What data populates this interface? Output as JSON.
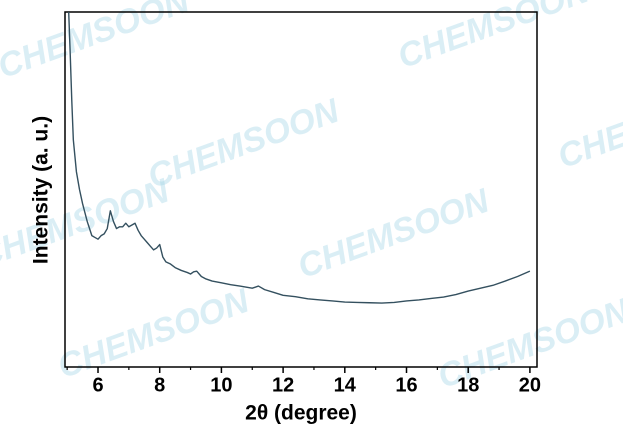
{
  "watermark": "CHEMSOON",
  "chart_data": {
    "type": "line",
    "x_label": "2θ (degree)",
    "y_label": "Intensity (a. u.)",
    "xlim": [
      4.93,
      20.23
    ],
    "ylim": [
      0,
      100
    ],
    "xticks": [
      6,
      8,
      10,
      12,
      14,
      16,
      18,
      20
    ],
    "xminorticks": [
      5,
      7,
      9,
      11,
      13,
      15,
      17,
      19
    ],
    "series": [
      {
        "color": "#34505f",
        "x": [
          5.05,
          5.1,
          5.15,
          5.2,
          5.3,
          5.4,
          5.5,
          5.65,
          5.8,
          5.9,
          6.0,
          6.1,
          6.2,
          6.3,
          6.4,
          6.5,
          6.6,
          6.7,
          6.8,
          6.9,
          7.0,
          7.1,
          7.2,
          7.3,
          7.4,
          7.5,
          7.6,
          7.7,
          7.8,
          7.9,
          8.0,
          8.1,
          8.2,
          8.35,
          8.5,
          8.7,
          8.9,
          9.0,
          9.1,
          9.2,
          9.35,
          9.5,
          9.7,
          10.0,
          10.3,
          10.6,
          11.0,
          11.2,
          11.4,
          11.7,
          12.0,
          12.4,
          12.8,
          13.2,
          13.6,
          14.0,
          14.4,
          14.8,
          15.2,
          15.6,
          16.0,
          16.4,
          16.8,
          17.2,
          17.6,
          18.0,
          18.4,
          18.8,
          19.2,
          19.6,
          20.0
        ],
        "values": [
          100,
          88,
          75,
          64,
          55,
          50,
          46,
          41,
          37,
          36.5,
          36,
          37,
          37.5,
          39,
          44,
          41,
          39,
          39.5,
          39.5,
          40.5,
          39.5,
          40,
          40.5,
          38.5,
          37,
          36,
          35,
          34,
          33,
          33.5,
          34.5,
          31,
          29.6,
          29,
          28,
          27.2,
          26.6,
          26.2,
          26.8,
          27,
          25.5,
          24.8,
          24.2,
          23.7,
          23.2,
          22.8,
          22.2,
          22.8,
          21.8,
          21,
          20.2,
          19.8,
          19.2,
          18.9,
          18.6,
          18.3,
          18.2,
          18.1,
          18,
          18.2,
          18.6,
          18.9,
          19.3,
          19.7,
          20.4,
          21.4,
          22.2,
          23,
          24.2,
          25.5,
          27
        ]
      }
    ]
  }
}
